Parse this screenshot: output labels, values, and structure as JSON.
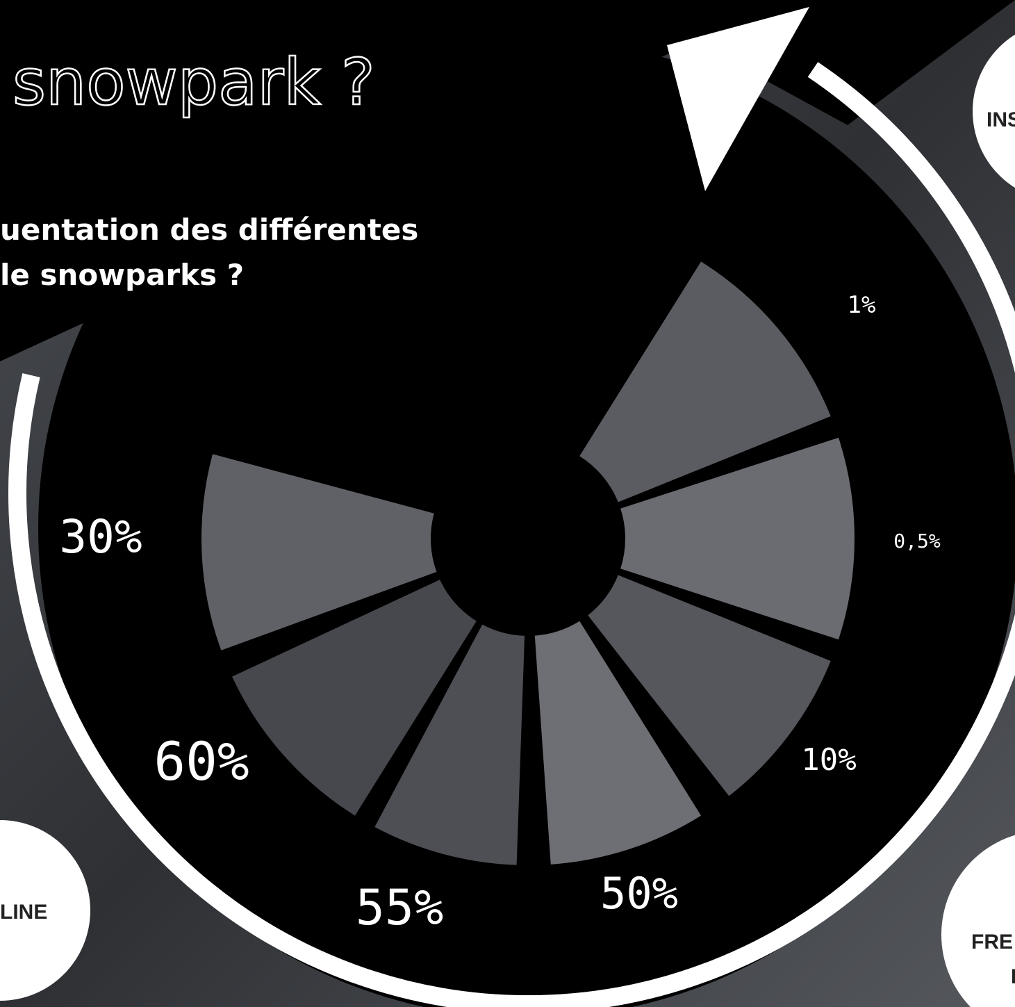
{
  "header": {
    "title": "snowpark ?"
  },
  "question": {
    "lines": [
      "uentation des différentes",
      "le snowparks ?"
    ]
  },
  "ring_labels": [
    "1%",
    "0,5%",
    "10%",
    "50%",
    "55%",
    "60%",
    "30%"
  ],
  "badges": [
    {
      "label": "INS"
    },
    {
      "label": "LINE"
    },
    {
      "label": "FRE"
    },
    {
      "label": "I"
    }
  ]
}
